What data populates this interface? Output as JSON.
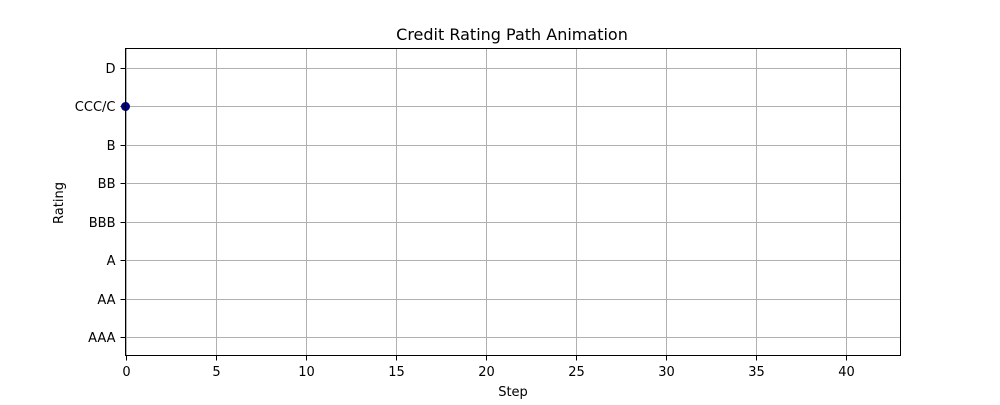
{
  "chart_data": {
    "type": "scatter",
    "title": "Credit Rating Path Animation",
    "xlabel": "Step",
    "ylabel": "Rating",
    "xlim": [
      0,
      43
    ],
    "x_ticks": [
      0,
      5,
      10,
      15,
      20,
      25,
      30,
      35,
      40
    ],
    "y_categories": [
      "AAA",
      "AA",
      "A",
      "BBB",
      "BB",
      "B",
      "CCC/C",
      "D"
    ],
    "grid": true,
    "points": [
      {
        "x": 0,
        "y": "CCC/C"
      }
    ],
    "marker_color": "#000080"
  }
}
